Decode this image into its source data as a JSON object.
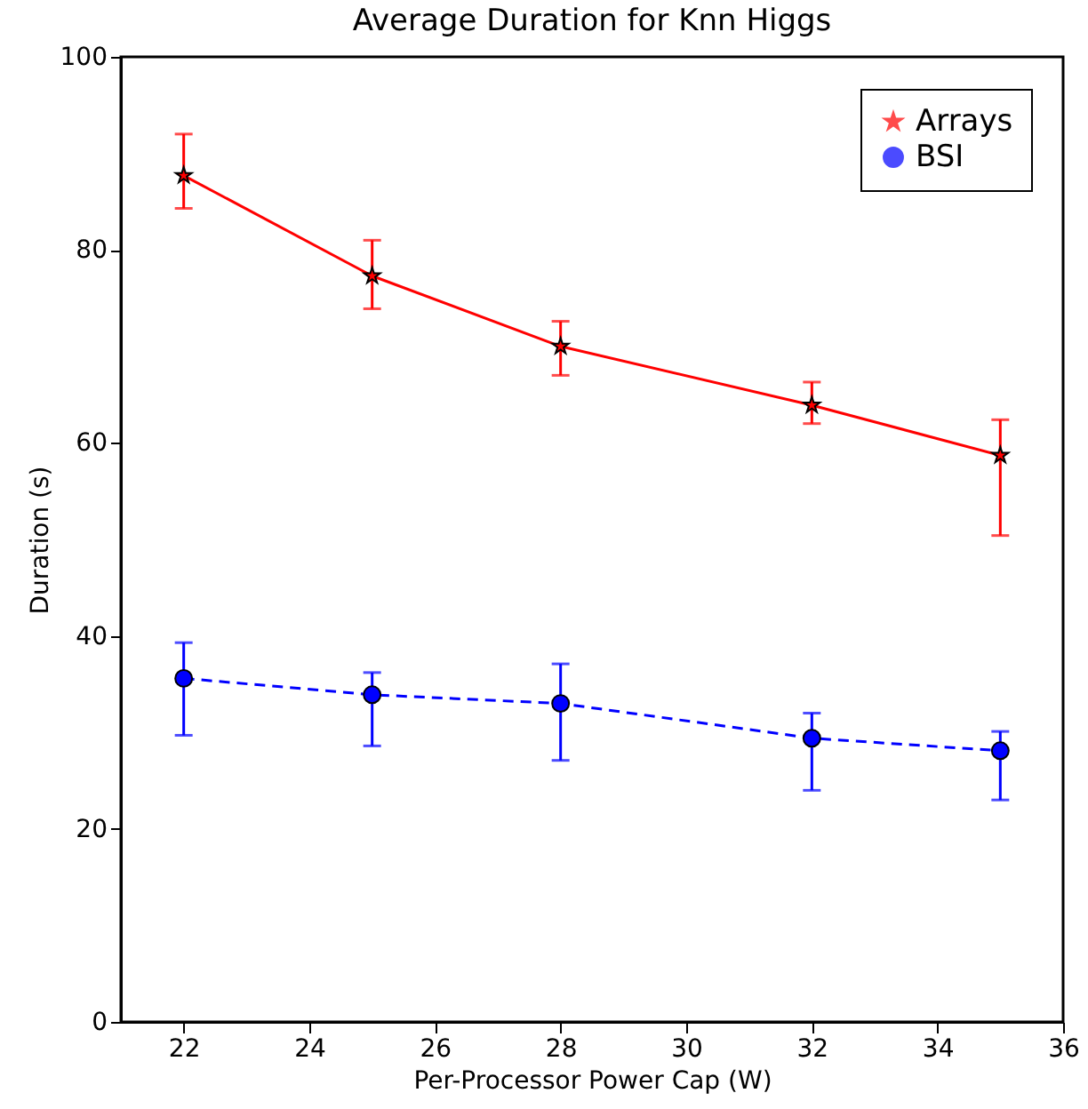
{
  "chart_data": {
    "type": "line",
    "title": "Average Duration for Knn Higgs",
    "xlabel": "Per-Processor Power Cap (W)",
    "ylabel": "Duration (s)",
    "x": [
      22,
      25,
      28,
      32,
      35
    ],
    "series": [
      {
        "name": "Arrays",
        "color": "#ff0000",
        "marker": "star",
        "line_style": "solid",
        "values": [
          87.7,
          77.3,
          70.0,
          63.9,
          58.7
        ],
        "errors": [
          [
            84.3,
            92.0
          ],
          [
            73.9,
            81.0
          ],
          [
            67.0,
            72.6
          ],
          [
            62.0,
            66.3
          ],
          [
            50.4,
            62.4
          ]
        ]
      },
      {
        "name": "BSI",
        "color": "#0000ff",
        "marker": "circle",
        "line_style": "dashed",
        "values": [
          35.6,
          33.9,
          33.0,
          29.4,
          28.1
        ],
        "errors": [
          [
            29.7,
            39.3
          ],
          [
            28.6,
            36.2
          ],
          [
            27.1,
            37.1
          ],
          [
            24.0,
            32.0
          ],
          [
            23.0,
            30.1
          ]
        ]
      }
    ],
    "xlim": [
      21,
      36
    ],
    "xticks": [
      22,
      24,
      26,
      28,
      30,
      32,
      34,
      36
    ],
    "ylim": [
      0,
      100
    ],
    "yticks": [
      0,
      20,
      40,
      60,
      80,
      100
    ],
    "grid": false,
    "legend": "top right"
  }
}
